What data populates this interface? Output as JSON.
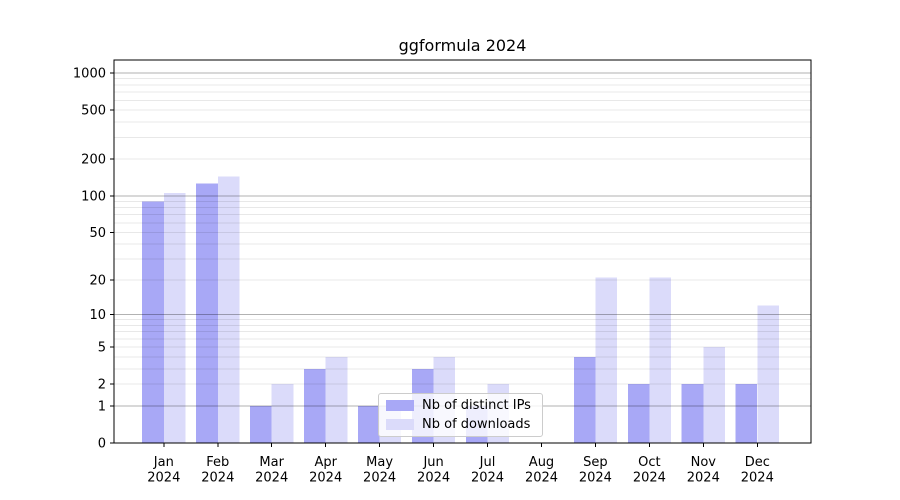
{
  "title": "ggformula 2024",
  "chart_data": {
    "type": "bar",
    "title": "ggformula 2024",
    "categories": [
      "Jan",
      "Feb",
      "Mar",
      "Apr",
      "May",
      "Jun",
      "Jul",
      "Aug",
      "Sep",
      "Oct",
      "Nov",
      "Dec"
    ],
    "category_year": "2024",
    "series": [
      {
        "name": "Nb of distinct IPs",
        "color": "#a8a8f6",
        "values": [
          90,
          126,
          1,
          3,
          1,
          3,
          1,
          0,
          4,
          2,
          2,
          2
        ]
      },
      {
        "name": "Nb of downloads",
        "color": "#dbdbfa",
        "values": [
          106,
          144,
          2,
          4,
          1,
          4,
          2,
          0,
          21,
          21,
          5,
          12
        ]
      }
    ],
    "yscale": "log(1+x)",
    "yticks": [
      1000,
      500,
      200,
      100,
      50,
      20,
      10,
      5,
      2,
      1,
      0
    ],
    "ylim": [
      0,
      1276
    ],
    "grid": "horizontal; major at 1,10,100,1000; minor at 2-9 per decade",
    "legend_position": "lower center inside plot",
    "axis_color": "#000000",
    "text_color": "#000000",
    "major_grid_color": "rgba(0,0,0,0.30)",
    "minor_grid_color": "rgba(0,0,0,0.09)",
    "legend_border_color": "#cccccc",
    "legend_bg_color": "rgba(255,255,255,0.8)"
  }
}
